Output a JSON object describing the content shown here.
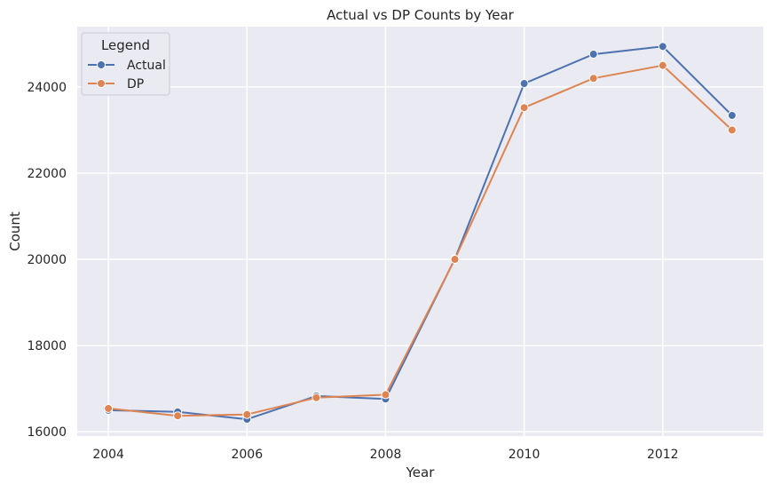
{
  "chart_data": {
    "type": "line",
    "title": "Actual vs DP Counts by Year",
    "xlabel": "Year",
    "ylabel": "Count",
    "x": [
      2004,
      2005,
      2006,
      2007,
      2008,
      2009,
      2010,
      2011,
      2012,
      2013
    ],
    "xlim": [
      2003.55,
      2013.45
    ],
    "ylim": [
      15900,
      25400
    ],
    "xticks": [
      2004,
      2006,
      2008,
      2010,
      2012
    ],
    "yticks": [
      16000,
      18000,
      20000,
      22000,
      24000
    ],
    "grid": true,
    "legend": {
      "title": "Legend",
      "position": "top-left"
    },
    "series": [
      {
        "name": "Actual",
        "color": "#4c72b0",
        "values": [
          16500,
          16460,
          16290,
          16830,
          16760,
          20010,
          24080,
          24760,
          24940,
          23340
        ]
      },
      {
        "name": "DP",
        "color": "#dd8452",
        "values": [
          16540,
          16370,
          16400,
          16790,
          16860,
          20000,
          23520,
          24200,
          24500,
          23000
        ]
      }
    ]
  }
}
